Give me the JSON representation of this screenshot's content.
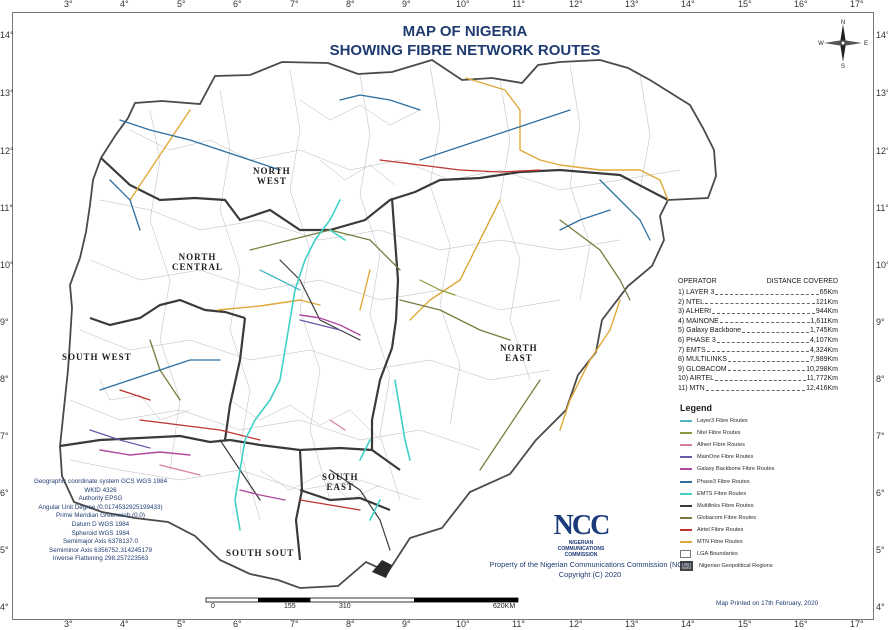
{
  "title": {
    "line1": "MAP OF NIGERIA",
    "line2": "SHOWING FIBRE  NETWORK ROUTES"
  },
  "compass": {
    "n": "N",
    "s": "S",
    "e": "E",
    "w": "W"
  },
  "grid": {
    "lon_ticks": [
      "3°",
      "4°",
      "5°",
      "6°",
      "7°",
      "8°",
      "9°",
      "10°",
      "11°",
      "12°",
      "13°",
      "14°",
      "15°",
      "16°",
      "17°"
    ],
    "lat_ticks": [
      "14°",
      "13°",
      "12°",
      "11°",
      "10°",
      "9°",
      "8°",
      "7°",
      "6°",
      "5°",
      "4°"
    ]
  },
  "regions": {
    "north_west": [
      "NORTH",
      "WEST"
    ],
    "north_central": [
      "NORTH",
      "CENTRAL"
    ],
    "south_west": "SOUTH WEST",
    "north_east": [
      "NORTH",
      "EAST"
    ],
    "south_east": [
      "SOUTH",
      "EAST"
    ],
    "south_south": "SOUTH SOUT"
  },
  "distance_table": {
    "header_operator": "OPERATOR",
    "header_distance": "DISTANCE COVERED",
    "rows": [
      {
        "operator": "1) LAYER 3",
        "distance": "65Km"
      },
      {
        "operator": "2) NTEL",
        "distance": "121Km"
      },
      {
        "operator": "3) ALHERI",
        "distance": "944Km"
      },
      {
        "operator": "4) MAINONE",
        "distance": "1,611Km"
      },
      {
        "operator": "5) Galaxy Backbone",
        "distance": "1,745Km"
      },
      {
        "operator": "6) PHASE 3",
        "distance": "4,107Km"
      },
      {
        "operator": "7) EMTS",
        "distance": "4,324Km"
      },
      {
        "operator": "8) MULTILINKS",
        "distance": "7,989Km"
      },
      {
        "operator": "9) GLOBACOM",
        "distance": "10,298Km"
      },
      {
        "operator": "10) AIRTEL",
        "distance": "11,772Km"
      },
      {
        "operator": "11) MTN",
        "distance": "12,416Km"
      }
    ]
  },
  "legend": {
    "title": "Legend",
    "items": [
      {
        "label": "Layer3 Fibre Routes",
        "color": "#4db8c4",
        "kind": "line"
      },
      {
        "label": "Ntel Fibre Routes",
        "color": "#8a9a3a",
        "kind": "line"
      },
      {
        "label": "Alheri Fibre Routes",
        "color": "#d77fa1",
        "kind": "line"
      },
      {
        "label": "MainOne Fibre Routes",
        "color": "#6a5aa8",
        "kind": "line"
      },
      {
        "label": "Galaxy Backbone Fibre Routes",
        "color": "#b04aa0",
        "kind": "line"
      },
      {
        "label": "Phase3 Fibre Routes",
        "color": "#2f6f9e",
        "kind": "line"
      },
      {
        "label": "EMTS Fibre Routes",
        "color": "#3fd1c6",
        "kind": "line"
      },
      {
        "label": "Multilinks Fibre Routes",
        "color": "#3a3a3a",
        "kind": "line"
      },
      {
        "label": "Globacom Fibre Routes",
        "color": "#7a7a40",
        "kind": "line"
      },
      {
        "label": "Airtel Fibre Routes",
        "color": "#c0322e",
        "kind": "line"
      },
      {
        "label": "MTN Fibre Routes",
        "color": "#e0a83a",
        "kind": "line"
      },
      {
        "label": "LGA Boundaries",
        "color": "#ffffff",
        "kind": "box"
      },
      {
        "label": "Nigerian Geopolitical Regions",
        "color": "#888888",
        "kind": "box-bold"
      }
    ]
  },
  "logo": {
    "letters": "NCC",
    "name_line1": "NIGERIAN",
    "name_line2": "COMMUNICATIONS",
    "name_line3": "COMMISSION"
  },
  "footer": {
    "property": "Property of the Nigerian Communications Commission (NCC)",
    "copyright": "Copyright (C) 2020",
    "printed": "Map Printed on 17th February, 2020"
  },
  "coordinate_info": [
    "Geographic coordinate system GCS WGS 1984",
    "WKID 4326",
    "Authority EPSG",
    "Angular Unit Degree (0.0174532925199433)",
    "Prime Meridian Greenwich (0.0)",
    "Datum D WGS 1984",
    "Spheroid WGS 1984",
    "Semimajor Axis 6378137.0",
    "Semiminor Axis 6356752.314245179",
    "Inverse Flattening 298.257223563"
  ],
  "scale": {
    "labels": [
      "0",
      "155",
      "310",
      "620KM"
    ]
  }
}
